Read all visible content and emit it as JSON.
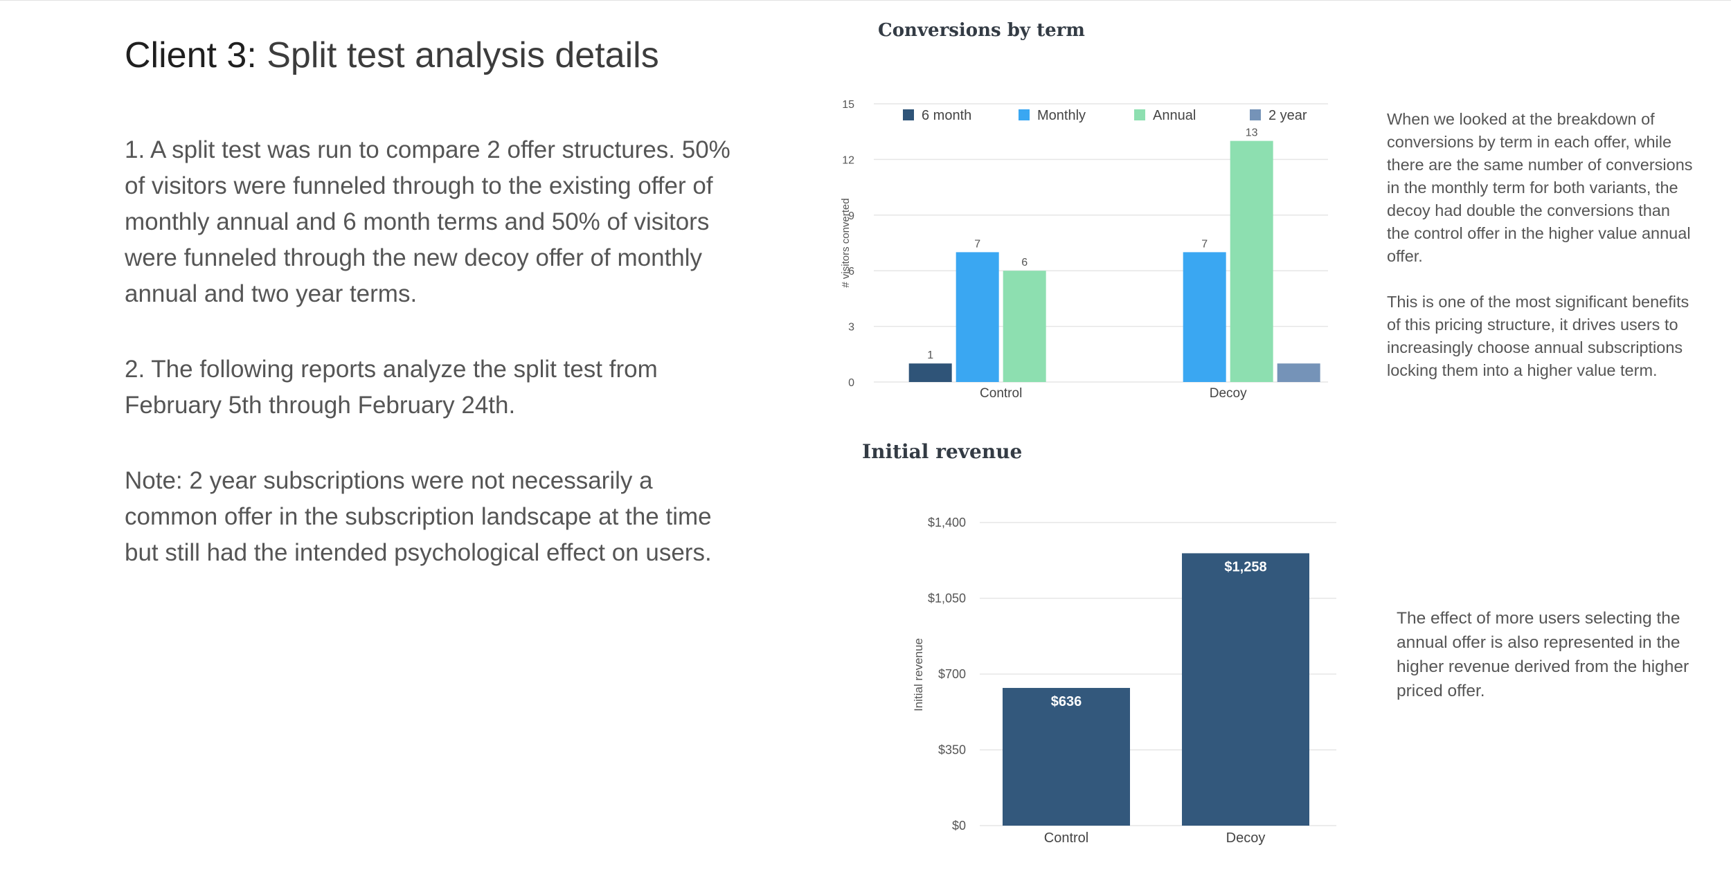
{
  "page": {
    "title_strong": "Client 3:",
    "title_light": " Split test analysis details",
    "paragraphs": [
      "1. A split test was run to compare 2 offer structures. 50%\nof visitors were funneled through to the existing offer of\nmonthly annual and 6 month terms and 50% of visitors\nwere funneled through the new decoy offer of monthly\nannual and two year terms.",
      "2. The following reports analyze the split test from\nFebruary 5th  through February 24th.",
      "Note: 2 year subscriptions were not necessarily a\ncommon offer in the subscription landscape at the time\nbut still had the intended psychological effect on users."
    ],
    "note_conversions": "When we looked at the breakdown of\nconversions by term in each offer, while\nthere are the same number of conversions\nin the monthly term for both variants, the\ndecoy had double the conversions than\nthe control offer in the higher value annual\noffer.\n\nThis is one of the most significant benefits\nof this pricing structure, it drives users to\nincreasingly choose annual subscriptions\nlocking them into a higher value term.",
    "note_revenue": "The effect of more users selecting the\nannual offer is also represented in the\nhigher revenue derived from the higher\npriced offer."
  },
  "chart_data": [
    {
      "type": "bar",
      "title": "Conversions by term",
      "categories": [
        "Control",
        "Decoy"
      ],
      "series": [
        {
          "name": "6 month",
          "color": "#2f5478",
          "values": [
            1,
            null
          ]
        },
        {
          "name": "Monthly",
          "color": "#3aa7f2",
          "values": [
            7,
            7
          ]
        },
        {
          "name": "Annual",
          "color": "#8ddfb0",
          "values": [
            6,
            13
          ]
        },
        {
          "name": "2 year",
          "color": "#7593b8",
          "values": [
            null,
            1
          ]
        }
      ],
      "data_labels": [
        [
          "1",
          null
        ],
        [
          "7",
          "7"
        ],
        [
          "6",
          "13"
        ],
        [
          null,
          null
        ]
      ],
      "ylabel": "# visitors converted",
      "ylim": [
        0,
        15
      ],
      "yticks": [
        "0",
        "3",
        "6",
        "9",
        "12",
        "15"
      ],
      "grid": true,
      "legend": "top"
    },
    {
      "type": "bar",
      "title": "Initial revenue",
      "categories": [
        "Control",
        "Decoy"
      ],
      "series": [
        {
          "color": "#33587c",
          "values": [
            636,
            1258
          ]
        }
      ],
      "data_labels": [
        "$636",
        "$1,258"
      ],
      "ylabel": "Initial revenue",
      "ylim": [
        0,
        1400
      ],
      "yticks": [
        "$0",
        "$350",
        "$700",
        "$1,050",
        "$1,400"
      ],
      "grid": true
    }
  ]
}
